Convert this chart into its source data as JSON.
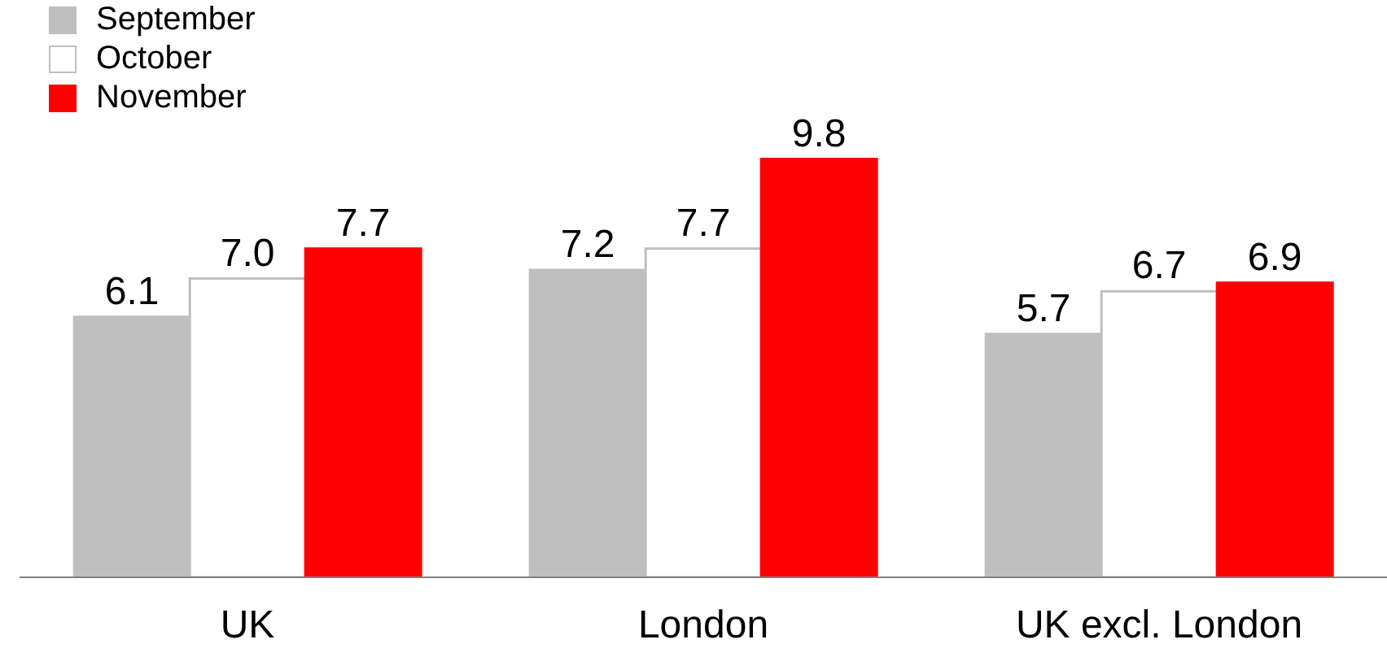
{
  "chart_data": {
    "type": "bar",
    "categories": [
      "UK",
      "London",
      "UK excl. London"
    ],
    "series": [
      {
        "name": "September",
        "color": "#bfbfbf",
        "values": [
          6.1,
          7.2,
          5.7
        ],
        "value_labels": [
          "6.1",
          "7.2",
          "5.7"
        ]
      },
      {
        "name": "October",
        "color": "#ffffff",
        "values": [
          7.0,
          7.7,
          6.7
        ],
        "value_labels": [
          "7.0",
          "7.7",
          "6.7"
        ]
      },
      {
        "name": "November",
        "color": "#ff0000",
        "values": [
          7.7,
          9.8,
          6.9
        ],
        "value_labels": [
          "7.7",
          "9.8",
          "6.9"
        ]
      }
    ],
    "legend": "top left",
    "tick_labels": "x"
  }
}
